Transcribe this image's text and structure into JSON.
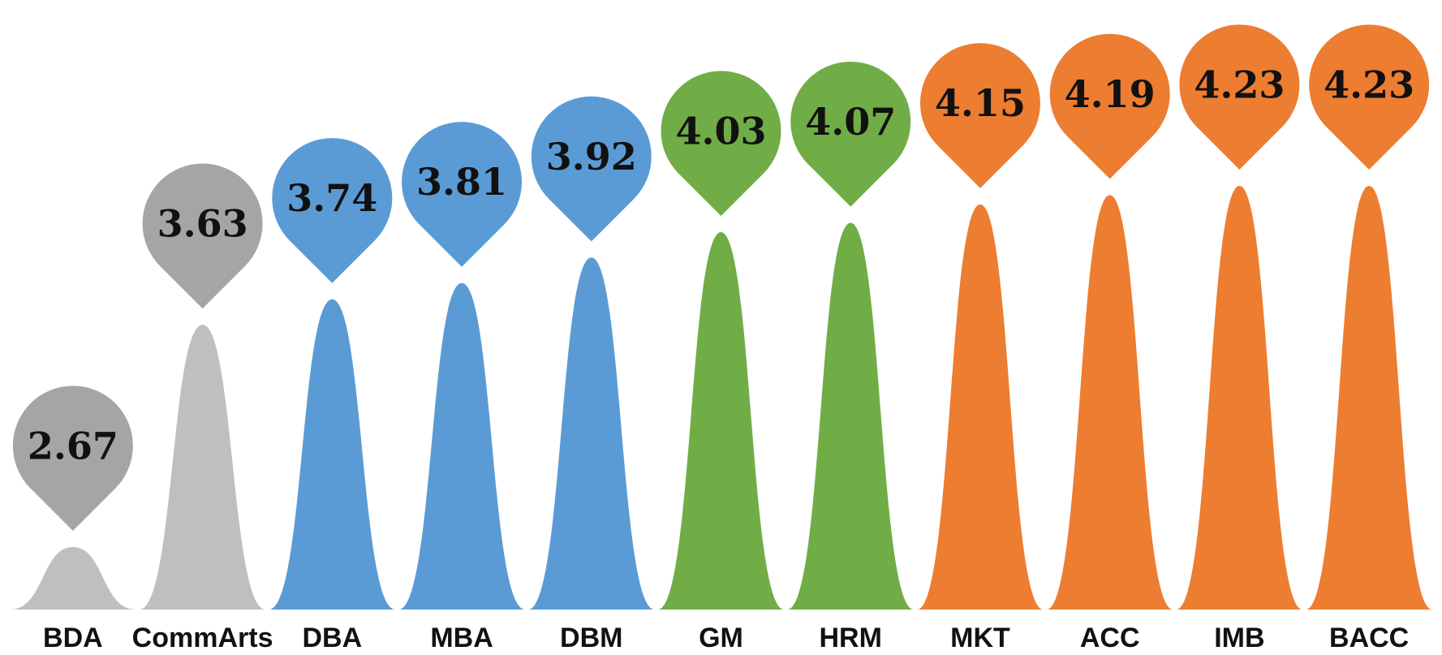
{
  "chart_data": {
    "type": "bar",
    "title": "",
    "xlabel": "",
    "ylabel": "",
    "categories": [
      "BDA",
      "CommArts",
      "DBA",
      "MBA",
      "DBM",
      "GM",
      "HRM",
      "MKT",
      "ACC",
      "IMB",
      "BACC"
    ],
    "values": [
      2.67,
      3.63,
      3.74,
      3.81,
      3.92,
      4.03,
      4.07,
      4.15,
      4.19,
      4.23,
      4.23
    ],
    "value_labels": [
      "2.67",
      "3.63",
      "3.74",
      "3.81",
      "3.92",
      "4.03",
      "4.07",
      "4.15",
      "4.19",
      "4.23",
      "4.23"
    ],
    "groups": [
      "gray",
      "gray",
      "blue",
      "blue",
      "blue",
      "green",
      "green",
      "orange",
      "orange",
      "orange",
      "orange"
    ],
    "colors": {
      "gray": "#a5a5a5",
      "gray_peak": "#bfbfbf",
      "blue": "#5b9bd5",
      "green": "#70ad47",
      "orange": "#ed7d31"
    },
    "grid": false,
    "legend": "none"
  }
}
